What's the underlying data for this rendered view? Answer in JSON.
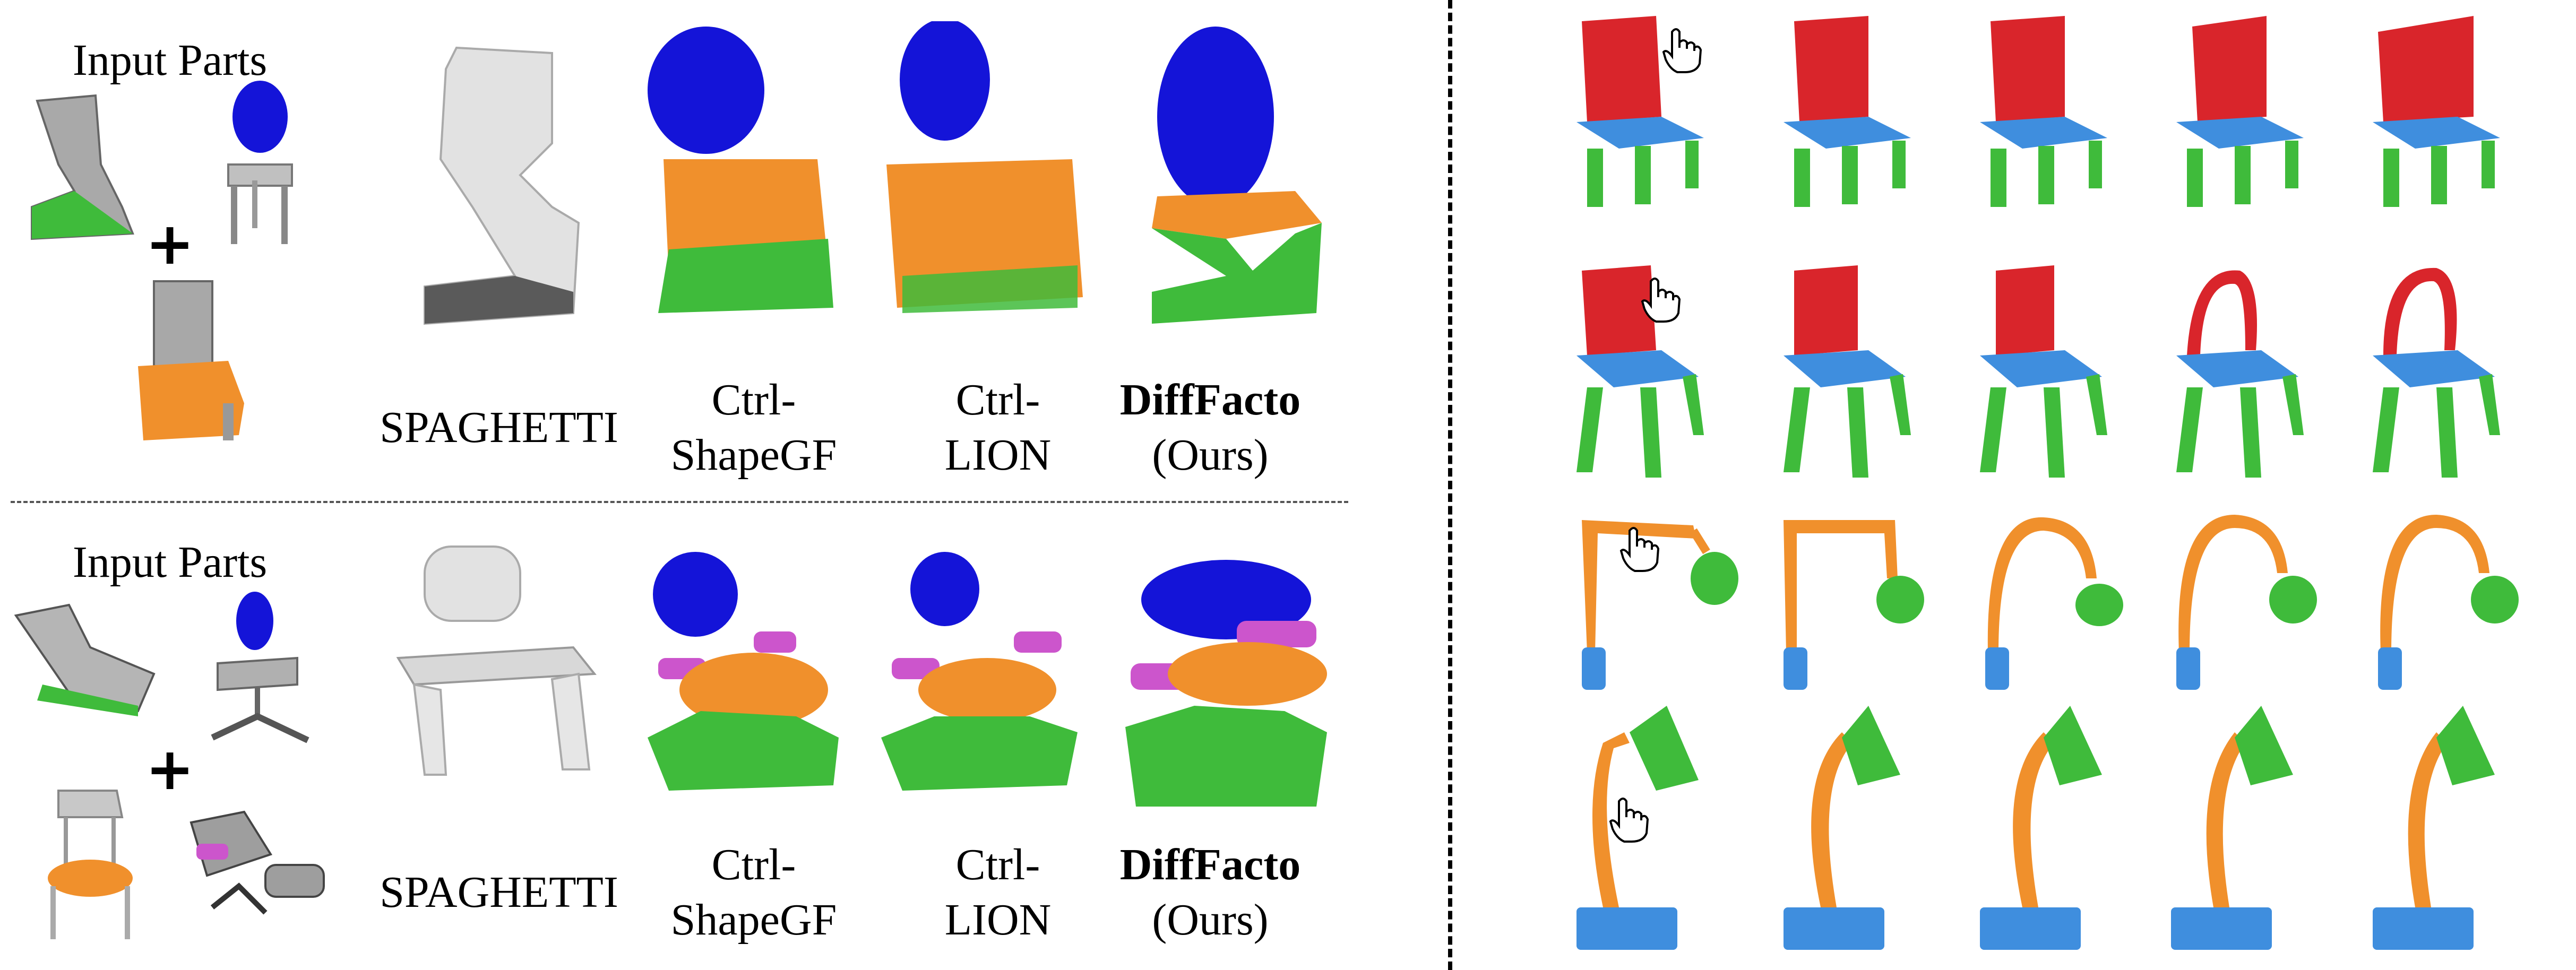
{
  "left": {
    "rows": [
      {
        "input_label": "Input Parts",
        "methods": [
          {
            "line1": "SPAGHETTI",
            "line2": ""
          },
          {
            "line1": "Ctrl-",
            "line2": "ShapeGF"
          },
          {
            "line1": "Ctrl-",
            "line2": "LION"
          },
          {
            "line1": "DiffFacto",
            "line2": "(Ours)"
          }
        ]
      },
      {
        "input_label": "Input Parts",
        "methods": [
          {
            "line1": "SPAGHETTI",
            "line2": ""
          },
          {
            "line1": "Ctrl-",
            "line2": "ShapeGF"
          },
          {
            "line1": "Ctrl-",
            "line2": "LION"
          },
          {
            "line1": "DiffFacto",
            "line2": "(Ours)"
          }
        ]
      }
    ],
    "plus_sign": "+"
  },
  "colors": {
    "red": "#d9252b",
    "blue_dark": "#1414d8",
    "blue_light": "#3f8ede",
    "orange": "#f0902c",
    "green": "#3fbb3b",
    "magenta": "#cc55cc",
    "gray": "#b9b9b9"
  },
  "icons": [
    "hand-cursor-icon"
  ]
}
